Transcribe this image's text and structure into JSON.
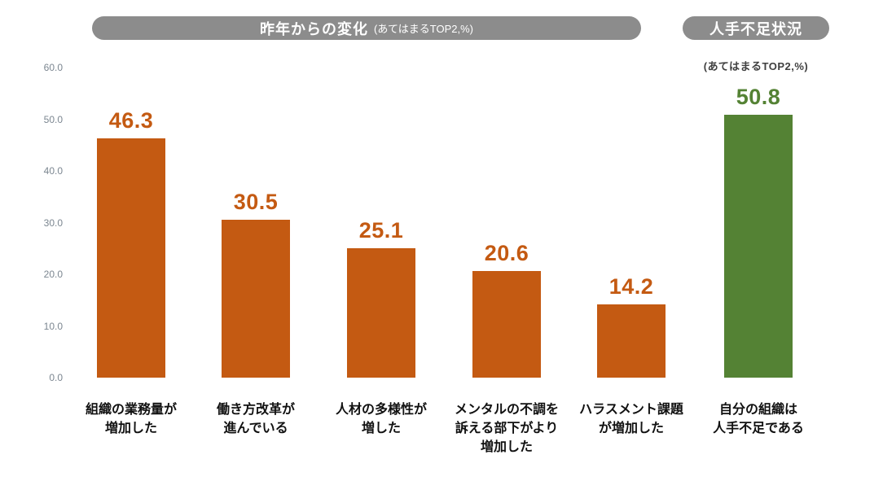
{
  "header": {
    "main_banner": {
      "title": "昨年からの変化",
      "note": "(あてはまるTOP2,%)"
    },
    "right_banner": {
      "title": "人手不足状況"
    },
    "right_subtitle": "(あてはまるTOP2,%)"
  },
  "colors": {
    "banner_bg": "#8C8C8C",
    "banner_text": "#FFFFFF",
    "orange": "#C45A12",
    "green": "#548234",
    "axis_label": "#7B8690",
    "category_text": "#111111",
    "subtitle_text": "#404040"
  },
  "chart_data": {
    "type": "bar",
    "title": "昨年からの変化 (あてはまるTOP2,%)",
    "right_section_title": "人手不足状況 (あてはまるTOP2,%)",
    "categories": [
      [
        "組織の業務量が",
        "増加した"
      ],
      [
        "働き方改革が",
        "進んでいる"
      ],
      [
        "人材の多様性が",
        "増した"
      ],
      [
        "メンタルの不調を",
        "訴える部下がより",
        "増加した"
      ],
      [
        "ハラスメント課題",
        "が増加した"
      ],
      [
        "自分の組織は",
        "人手不足である"
      ]
    ],
    "values": [
      46.3,
      30.5,
      25.1,
      20.6,
      14.2,
      50.8
    ],
    "value_labels": [
      "46.3",
      "30.5",
      "25.1",
      "20.6",
      "14.2",
      "50.8"
    ],
    "bar_colors": [
      "#C45A12",
      "#C45A12",
      "#C45A12",
      "#C45A12",
      "#C45A12",
      "#548234"
    ],
    "ylim": [
      0,
      60
    ],
    "yticks": [
      60,
      50,
      40,
      30,
      20,
      10,
      0
    ],
    "ytick_labels": [
      "60.0",
      "50.0",
      "40.0",
      "30.0",
      "20.0",
      "10.0",
      "0.0"
    ],
    "xlabel": "",
    "ylabel": "",
    "grid": false,
    "legend": "none"
  }
}
